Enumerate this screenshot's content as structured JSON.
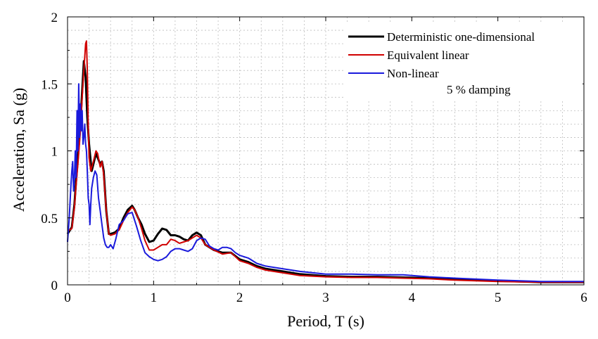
{
  "chart_data": {
    "type": "line",
    "title": "",
    "xlabel": "Period, T (s)",
    "ylabel": "Acceleration, Sa (g)",
    "xlim": [
      0,
      6
    ],
    "ylim": [
      0,
      2
    ],
    "xticks": [
      0,
      1,
      2,
      3,
      4,
      5,
      6
    ],
    "xtick_labels": [
      "0",
      "1",
      "2",
      "3",
      "4",
      "5",
      "6"
    ],
    "yticks": [
      0,
      0.5,
      1,
      1.5,
      2
    ],
    "ytick_labels": [
      "0",
      "0.5",
      "1",
      "1.5",
      "2"
    ],
    "grid": true,
    "legend_position": "top-right",
    "annotation": "5 % damping",
    "series": [
      {
        "name": "Deterministic one-dimensional",
        "color": "#000000",
        "x": [
          0.0,
          0.05,
          0.08,
          0.1,
          0.12,
          0.15,
          0.17,
          0.19,
          0.21,
          0.23,
          0.25,
          0.28,
          0.3,
          0.33,
          0.35,
          0.38,
          0.4,
          0.42,
          0.45,
          0.48,
          0.5,
          0.55,
          0.6,
          0.65,
          0.7,
          0.75,
          0.78,
          0.82,
          0.86,
          0.9,
          0.95,
          1.0,
          1.05,
          1.1,
          1.15,
          1.2,
          1.25,
          1.3,
          1.35,
          1.4,
          1.45,
          1.5,
          1.55,
          1.6,
          1.7,
          1.8,
          1.9,
          2.0,
          2.1,
          2.2,
          2.3,
          2.5,
          2.7,
          3.0,
          3.3,
          3.6,
          3.9,
          4.2,
          4.5,
          5.0,
          5.5,
          6.0
        ],
        "y": [
          0.38,
          0.43,
          0.6,
          0.78,
          0.95,
          1.2,
          1.45,
          1.67,
          1.55,
          1.25,
          1.05,
          0.85,
          0.9,
          0.98,
          0.95,
          0.9,
          0.92,
          0.85,
          0.55,
          0.38,
          0.38,
          0.39,
          0.42,
          0.5,
          0.56,
          0.59,
          0.56,
          0.5,
          0.45,
          0.38,
          0.32,
          0.33,
          0.38,
          0.42,
          0.41,
          0.37,
          0.37,
          0.36,
          0.34,
          0.33,
          0.37,
          0.39,
          0.37,
          0.3,
          0.26,
          0.24,
          0.24,
          0.19,
          0.17,
          0.14,
          0.12,
          0.1,
          0.08,
          0.065,
          0.06,
          0.06,
          0.055,
          0.05,
          0.04,
          0.03,
          0.02,
          0.02
        ]
      },
      {
        "name": "Equivalent linear",
        "color": "#d00000",
        "x": [
          0.0,
          0.05,
          0.08,
          0.1,
          0.12,
          0.15,
          0.17,
          0.19,
          0.21,
          0.22,
          0.23,
          0.24,
          0.25,
          0.27,
          0.3,
          0.33,
          0.35,
          0.38,
          0.4,
          0.42,
          0.45,
          0.48,
          0.5,
          0.55,
          0.6,
          0.65,
          0.7,
          0.75,
          0.78,
          0.82,
          0.86,
          0.9,
          0.95,
          1.0,
          1.05,
          1.1,
          1.15,
          1.2,
          1.25,
          1.3,
          1.35,
          1.4,
          1.45,
          1.5,
          1.55,
          1.6,
          1.7,
          1.8,
          1.9,
          2.0,
          2.1,
          2.2,
          2.3,
          2.5,
          2.7,
          3.0,
          3.3,
          3.6,
          3.9,
          4.2,
          4.5,
          5.0,
          5.5,
          6.0
        ],
        "y": [
          0.4,
          0.42,
          0.58,
          0.75,
          0.9,
          1.15,
          1.4,
          1.6,
          1.8,
          1.82,
          1.6,
          1.2,
          0.95,
          0.85,
          0.92,
          1.0,
          0.98,
          0.88,
          0.92,
          0.82,
          0.55,
          0.38,
          0.37,
          0.38,
          0.41,
          0.48,
          0.54,
          0.58,
          0.56,
          0.5,
          0.42,
          0.33,
          0.26,
          0.26,
          0.28,
          0.3,
          0.3,
          0.34,
          0.33,
          0.31,
          0.32,
          0.33,
          0.35,
          0.37,
          0.35,
          0.3,
          0.26,
          0.23,
          0.24,
          0.18,
          0.16,
          0.13,
          0.11,
          0.09,
          0.07,
          0.06,
          0.055,
          0.055,
          0.05,
          0.045,
          0.035,
          0.025,
          0.02,
          0.02
        ]
      },
      {
        "name": "Non-linear",
        "color": "#1a1adc",
        "x": [
          0.0,
          0.02,
          0.04,
          0.05,
          0.06,
          0.07,
          0.08,
          0.09,
          0.1,
          0.11,
          0.12,
          0.13,
          0.14,
          0.15,
          0.16,
          0.17,
          0.18,
          0.19,
          0.2,
          0.21,
          0.22,
          0.23,
          0.24,
          0.25,
          0.26,
          0.27,
          0.28,
          0.3,
          0.32,
          0.34,
          0.36,
          0.38,
          0.4,
          0.42,
          0.44,
          0.46,
          0.48,
          0.5,
          0.53,
          0.56,
          0.6,
          0.65,
          0.7,
          0.75,
          0.8,
          0.85,
          0.9,
          0.95,
          1.0,
          1.05,
          1.1,
          1.15,
          1.2,
          1.25,
          1.3,
          1.35,
          1.4,
          1.45,
          1.5,
          1.55,
          1.6,
          1.65,
          1.7,
          1.75,
          1.8,
          1.85,
          1.9,
          1.95,
          2.0,
          2.1,
          2.2,
          2.3,
          2.5,
          2.7,
          3.0,
          3.3,
          3.6,
          3.9,
          4.2,
          4.5,
          5.0,
          5.5,
          6.0
        ],
        "y": [
          0.32,
          0.5,
          0.75,
          0.85,
          0.92,
          0.7,
          0.8,
          1.0,
          0.8,
          1.3,
          1.0,
          1.5,
          1.1,
          1.35,
          1.15,
          1.3,
          1.05,
          1.1,
          1.2,
          1.05,
          1.0,
          0.85,
          0.65,
          0.6,
          0.45,
          0.6,
          0.72,
          0.8,
          0.85,
          0.82,
          0.65,
          0.55,
          0.45,
          0.35,
          0.3,
          0.28,
          0.28,
          0.3,
          0.27,
          0.34,
          0.45,
          0.48,
          0.53,
          0.54,
          0.44,
          0.33,
          0.24,
          0.21,
          0.19,
          0.18,
          0.19,
          0.21,
          0.25,
          0.27,
          0.27,
          0.26,
          0.25,
          0.27,
          0.33,
          0.35,
          0.34,
          0.29,
          0.27,
          0.26,
          0.28,
          0.28,
          0.27,
          0.24,
          0.22,
          0.2,
          0.16,
          0.14,
          0.12,
          0.1,
          0.08,
          0.08,
          0.075,
          0.075,
          0.06,
          0.05,
          0.035,
          0.025,
          0.025
        ]
      }
    ]
  }
}
